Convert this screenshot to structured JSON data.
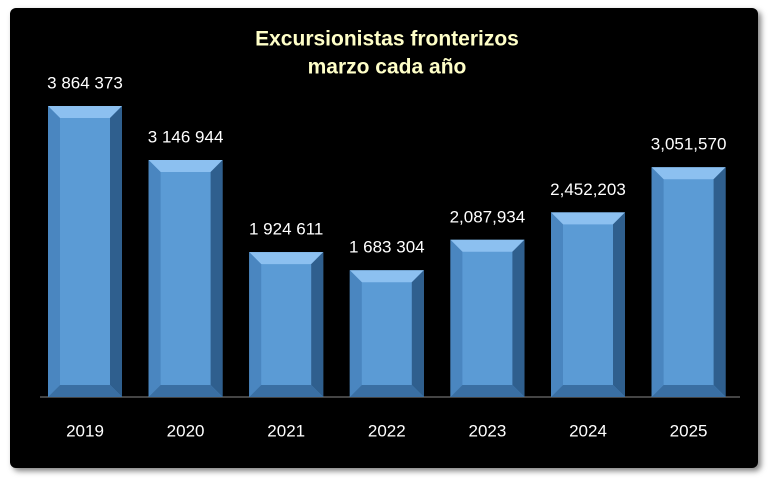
{
  "chart_data": {
    "type": "bar",
    "title": [
      "Excursionistas fronterizos",
      "marzo cada año"
    ],
    "categories": [
      "2019",
      "2020",
      "2021",
      "2022",
      "2023",
      "2024",
      "2025"
    ],
    "values": [
      3864373,
      3146944,
      1924611,
      1683304,
      2087934,
      2452203,
      3051570
    ],
    "value_labels": [
      "3 864 373",
      "3 146 944",
      "1 924 611",
      "1 683 304",
      "2,087,934",
      "2,452,203",
      "3,051,570"
    ],
    "color": "#5b9bd5"
  }
}
